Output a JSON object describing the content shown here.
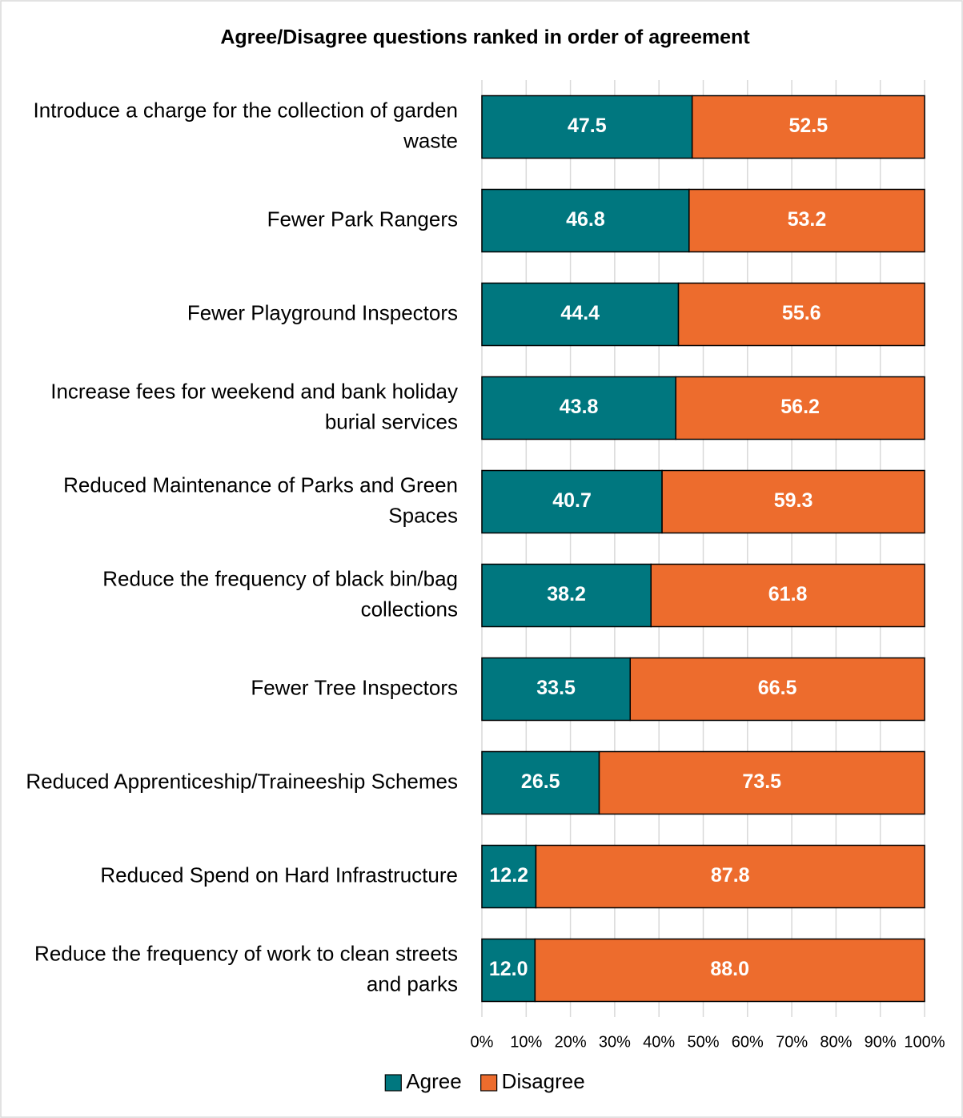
{
  "chart_data": {
    "type": "stacked_barh",
    "title": "Agree/Disagree questions ranked in order of agreement",
    "categories": [
      "Introduce a charge for the collection of garden waste",
      "Fewer Park Rangers",
      "Fewer Playground Inspectors",
      "Increase fees for weekend and bank holiday burial services",
      "Reduced Maintenance of Parks and Green Spaces",
      "Reduce the frequency of black bin/bag collections",
      "Fewer Tree Inspectors",
      "Reduced Apprenticeship/Traineeship Schemes",
      "Reduced Spend on Hard Infrastructure",
      "Reduce the frequency of work to clean streets and parks"
    ],
    "series": [
      {
        "name": "Agree",
        "color": "#00777f",
        "values": [
          47.5,
          46.8,
          44.4,
          43.8,
          40.7,
          38.2,
          33.5,
          26.5,
          12.2,
          12.0
        ],
        "value_labels": [
          "47.5",
          "46.8",
          "44.4",
          "43.8",
          "40.7",
          "38.2",
          "33.5",
          "26.5",
          "12.2",
          "12.0"
        ]
      },
      {
        "name": "Disagree",
        "color": "#ed6c2d",
        "values": [
          52.5,
          53.2,
          55.6,
          56.2,
          59.3,
          61.8,
          66.5,
          73.5,
          87.8,
          88.0
        ],
        "value_labels": [
          "52.5",
          "53.2",
          "55.6",
          "56.2",
          "59.3",
          "61.8",
          "66.5",
          "73.5",
          "87.8",
          "88.0"
        ]
      }
    ],
    "xlim": [
      0,
      100
    ],
    "xticks": [
      {
        "value": 0,
        "label": "0%"
      },
      {
        "value": 10,
        "label": "10%"
      },
      {
        "value": 20,
        "label": "20%"
      },
      {
        "value": 30,
        "label": "30%"
      },
      {
        "value": 40,
        "label": "40%"
      },
      {
        "value": 50,
        "label": "50%"
      },
      {
        "value": 60,
        "label": "60%"
      },
      {
        "value": 70,
        "label": "70%"
      },
      {
        "value": 80,
        "label": "80%"
      },
      {
        "value": 90,
        "label": "90%"
      },
      {
        "value": 100,
        "label": "100%"
      }
    ],
    "grid": true,
    "legend": "bottom"
  }
}
